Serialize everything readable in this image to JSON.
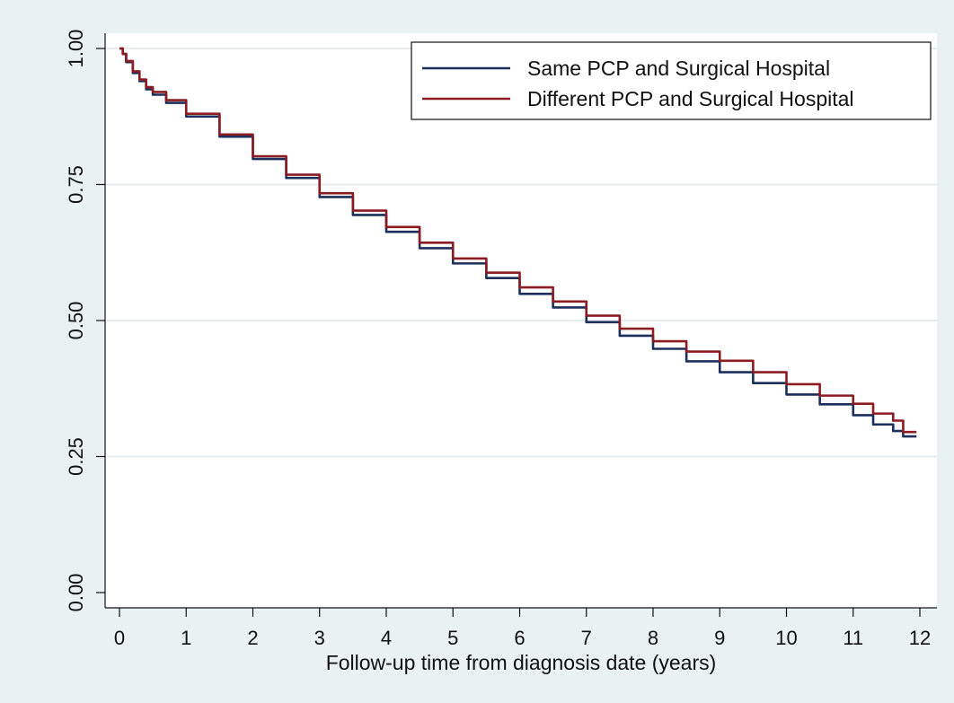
{
  "chart_data": {
    "type": "line",
    "title": "",
    "xlabel": "Follow-up time from diagnosis date (years)",
    "ylabel": "",
    "xlim": [
      0,
      12
    ],
    "ylim": [
      0,
      1
    ],
    "x_ticks": [
      "0",
      "1",
      "2",
      "3",
      "4",
      "5",
      "6",
      "7",
      "8",
      "9",
      "10",
      "11",
      "12"
    ],
    "y_ticks": [
      "0.00",
      "0.25",
      "0.50",
      "0.75",
      "1.00"
    ],
    "grid": "horizontal",
    "legend_position": "top-right",
    "background": "#eaf1f3",
    "plot_background": "#ffffff",
    "series": [
      {
        "name": "Same PCP and Surgical Hospital",
        "color": "#1c2e5c",
        "x": [
          0,
          0.05,
          0.1,
          0.2,
          0.3,
          0.4,
          0.5,
          0.7,
          1,
          1.5,
          2,
          2.5,
          3,
          3.5,
          4,
          4.5,
          5,
          5.5,
          6,
          6.5,
          7,
          7.5,
          8,
          8.5,
          9,
          9.5,
          10,
          10.5,
          11,
          11.3,
          11.6,
          11.75,
          11.95
        ],
        "y": [
          1.0,
          0.99,
          0.975,
          0.955,
          0.94,
          0.925,
          0.915,
          0.9,
          0.875,
          0.838,
          0.797,
          0.762,
          0.727,
          0.694,
          0.663,
          0.633,
          0.605,
          0.578,
          0.549,
          0.524,
          0.497,
          0.472,
          0.448,
          0.425,
          0.405,
          0.385,
          0.364,
          0.346,
          0.326,
          0.309,
          0.297,
          0.287,
          0.287
        ]
      },
      {
        "name": "Different PCP and Surgical Hospital",
        "color": "#8b1c22",
        "x": [
          0,
          0.05,
          0.1,
          0.2,
          0.3,
          0.4,
          0.5,
          0.7,
          1,
          1.5,
          2,
          2.5,
          3,
          3.5,
          4,
          4.5,
          5,
          5.5,
          6,
          6.5,
          7,
          7.5,
          8,
          8.5,
          9,
          9.5,
          10,
          10.5,
          11,
          11.3,
          11.6,
          11.75,
          11.95
        ],
        "y": [
          1.0,
          0.99,
          0.977,
          0.958,
          0.943,
          0.929,
          0.92,
          0.905,
          0.88,
          0.842,
          0.802,
          0.768,
          0.734,
          0.702,
          0.672,
          0.643,
          0.614,
          0.588,
          0.561,
          0.535,
          0.509,
          0.485,
          0.462,
          0.443,
          0.426,
          0.405,
          0.383,
          0.362,
          0.347,
          0.329,
          0.316,
          0.295,
          0.295
        ]
      }
    ]
  }
}
